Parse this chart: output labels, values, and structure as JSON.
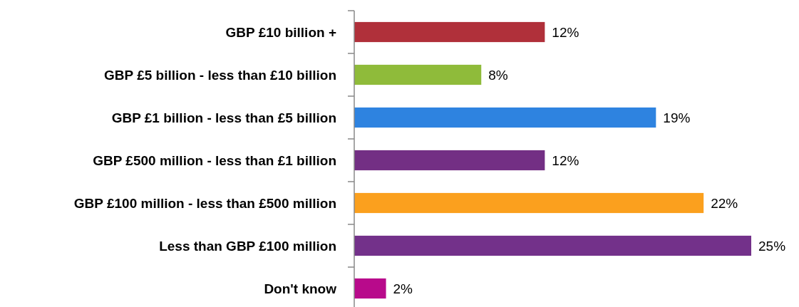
{
  "chart_data": {
    "type": "bar",
    "orientation": "horizontal",
    "categories": [
      "GBP £10 billion +",
      "GBP £5 billion - less than £10 billion",
      "GBP £1 billion - less than £5 billion",
      "GBP £500 million - less than £1 billion",
      "GBP £100 million - less than £500 million",
      "Less than GBP £100 million",
      "Don't know"
    ],
    "values": [
      12,
      8,
      19,
      12,
      22,
      25,
      2
    ],
    "value_labels": [
      "12%",
      "8%",
      "19%",
      "12%",
      "22%",
      "25%",
      "2%"
    ],
    "colors": [
      "#b0303a",
      "#8fbb3a",
      "#2e83e0",
      "#732f84",
      "#fba01e",
      "#73318a",
      "#b80a8b"
    ]
  }
}
